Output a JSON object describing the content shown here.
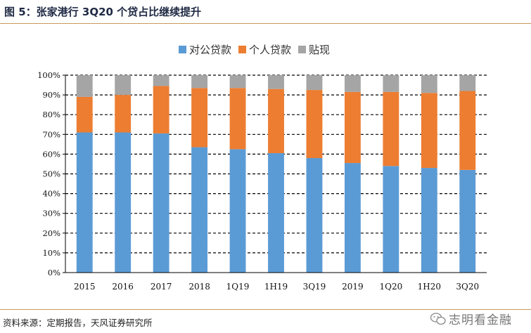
{
  "figure_title": "图 5：张家港行 3Q20 个贷占比继续提升",
  "source_note": "资料来源：定期报告，天风证券研究所",
  "watermark": "志明看金融",
  "chart_data": {
    "type": "bar",
    "stacked": true,
    "categories": [
      "2015",
      "2016",
      "2017",
      "2018",
      "1Q19",
      "1H19",
      "3Q19",
      "2019",
      "1Q20",
      "1H20",
      "3Q20"
    ],
    "series": [
      {
        "name": "对公贷款",
        "color": "#5b9bd5",
        "values": [
          71,
          71,
          70.5,
          63.5,
          62.5,
          60.5,
          58,
          55.5,
          54,
          53,
          52
        ]
      },
      {
        "name": "个人贷款",
        "color": "#ed7d31",
        "values": [
          18,
          19,
          24,
          30,
          31,
          32.5,
          34.5,
          36,
          37.5,
          38,
          40
        ]
      },
      {
        "name": "贴现",
        "color": "#a5a5a5",
        "values": [
          11,
          10,
          5.5,
          6.5,
          6.5,
          7,
          7.5,
          8.5,
          8.5,
          9,
          8
        ]
      }
    ],
    "yticks": [
      "0%",
      "10%",
      "20%",
      "30%",
      "40%",
      "50%",
      "60%",
      "70%",
      "80%",
      "90%",
      "100%"
    ],
    "ylim": [
      0,
      100
    ],
    "grid": "dashed horizontal",
    "legend_position": "top-center"
  }
}
